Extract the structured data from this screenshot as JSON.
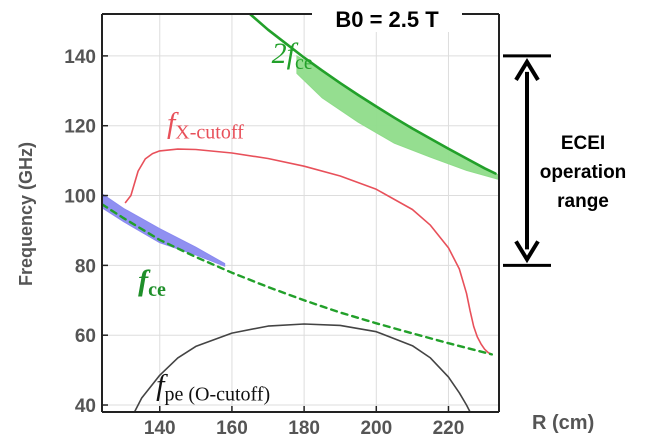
{
  "chart_data": {
    "type": "line",
    "title": "B0 = 2.5 T",
    "xlabel": "R (cm)",
    "ylabel": "Frequency (GHz)",
    "xlim": [
      124,
      234
    ],
    "ylim": [
      38,
      152
    ],
    "xticks": [
      140,
      160,
      180,
      200,
      220
    ],
    "yticks": [
      40,
      60,
      80,
      100,
      120,
      140
    ],
    "grid": true,
    "series": [
      {
        "name": "fX-cutoff",
        "color": "#e8505a",
        "style": "solid",
        "x": [
          130.5,
          132,
          134,
          136,
          138,
          140,
          145,
          150,
          160,
          170,
          180,
          190,
          200,
          210,
          215,
          220,
          223,
          225,
          226,
          227,
          228,
          229,
          230,
          231,
          232
        ],
        "y": [
          98,
          100,
          107,
          110.5,
          112,
          112.8,
          113.3,
          113.2,
          112.2,
          110.6,
          108.4,
          105.6,
          101.8,
          96,
          91.5,
          85,
          79,
          72,
          67,
          62.5,
          59.5,
          57.5,
          56,
          55,
          54.5
        ]
      },
      {
        "name": "2fce",
        "color": "#22a02a",
        "style": "solid",
        "x": [
          165,
          170,
          175,
          180,
          185,
          190,
          195,
          200,
          205,
          210,
          215,
          220,
          225,
          230,
          233
        ],
        "y": [
          152,
          147.5,
          143.5,
          139.5,
          135.8,
          132.2,
          128.8,
          125.5,
          122.3,
          119.2,
          116.3,
          113.4,
          110.6,
          107.8,
          106.3
        ]
      },
      {
        "name": "fce",
        "color": "#22a02a",
        "style": "dashed",
        "x": [
          124,
          130,
          140,
          150,
          160,
          170,
          180,
          190,
          200,
          210,
          220,
          232
        ],
        "y": [
          97.5,
          93.5,
          87.3,
          82.4,
          77.9,
          73.8,
          70,
          66.5,
          63.4,
          60.5,
          57.7,
          54.5
        ]
      },
      {
        "name": "fpe (O-cutoff)",
        "color": "#444444",
        "style": "solid",
        "x": [
          133,
          135,
          140,
          145,
          150,
          160,
          170,
          180,
          190,
          200,
          210,
          215,
          220,
          223,
          225,
          226
        ],
        "y": [
          38,
          42,
          48.5,
          53.5,
          56.8,
          60.6,
          62.6,
          63.2,
          62.8,
          61,
          57,
          53.5,
          48,
          43.5,
          40,
          38
        ]
      }
    ],
    "bands": [
      {
        "color": "#8a8af0",
        "upper": {
          "x": [
            124,
            130,
            140,
            150,
            158
          ],
          "y": [
            100.5,
            96.3,
            90.5,
            85.2,
            80.5
          ]
        },
        "lower": {
          "x": [
            124,
            130,
            140,
            150,
            158
          ],
          "y": [
            96.5,
            92.5,
            86.5,
            83.0,
            79.8
          ]
        }
      },
      {
        "color": "#8fdc8a",
        "upper": {
          "x": [
            178,
            185,
            195,
            205,
            215,
            225,
            234
          ],
          "y": [
            140.0,
            135.8,
            128.8,
            122.3,
            116.3,
            110.6,
            105.8
          ]
        },
        "lower": {
          "x": [
            178,
            185,
            195,
            205,
            215,
            225,
            234
          ],
          "y": [
            135.0,
            128.0,
            121.0,
            115.0,
            111.0,
            107.2,
            104.6
          ]
        }
      }
    ],
    "annotations": {
      "title": "B0 = 2.5 T",
      "range_text": [
        "ECEI",
        "operation",
        "range"
      ],
      "range": [
        80,
        140
      ],
      "labels": [
        {
          "main": "2f",
          "sub": "ce",
          "x": 171,
          "y": 138,
          "color": "#22a02a"
        },
        {
          "main": "f",
          "sub": "X-cutoff",
          "x": 142,
          "y": 118,
          "color": "#e8505a"
        },
        {
          "main": "f",
          "sub": "ce",
          "x": 134,
          "y": 73,
          "color": "#1f8f2a"
        },
        {
          "main": "f",
          "sub": "pe (O-cutoff)",
          "x": 139,
          "y": 43,
          "color": "#111111"
        }
      ]
    }
  }
}
